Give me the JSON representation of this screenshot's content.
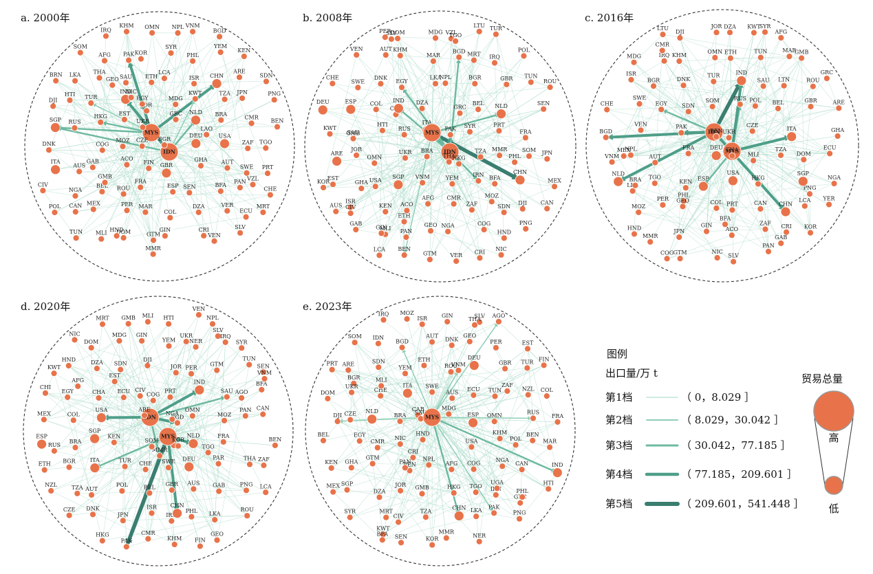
{
  "colors": {
    "node": "#E8734A",
    "node_stroke": "#ffffff",
    "tier1": "#B5DFCF",
    "tier2": "#8FCEB6",
    "tier3": "#6DB9A0",
    "tier4": "#4E9E88",
    "tier5": "#3A7E70",
    "border": "#333333"
  },
  "panels": [
    {
      "id": "a",
      "title": "a. 2000年",
      "big_nodes": [
        "MYS",
        "IDN"
      ],
      "medium_nodes": [
        "SGP",
        "NLD",
        "IND",
        "CHN",
        "ITA",
        "DEU",
        "USA",
        "GBR"
      ],
      "nodes": [
        "HKG",
        "MMR",
        "IRQ",
        "KHM",
        "OMN",
        "NPL",
        "VNM",
        "BGD",
        "LAO",
        "JOR",
        "VZL",
        "SOM",
        "AFG",
        "PAK",
        "KOR",
        "SYR",
        "PHL",
        "YEM",
        "KEN",
        "GEO",
        "BRN",
        "LKA",
        "THA",
        "SAU",
        "ETH",
        "LCA",
        "ISR",
        "CHN",
        "ARE",
        "SDN",
        "DJI",
        "HTI",
        "TUR",
        "IND",
        "EGY",
        "MDG",
        "KWT",
        "TZA",
        "JPN",
        "PNG",
        "SGP",
        "RUS",
        "MYS",
        "EST",
        "UKR",
        "GRC",
        "NLD",
        "BRA",
        "CMR",
        "BEN",
        "DNK",
        "IDN",
        "COG",
        "MOZ",
        "CZE",
        "BGR",
        "DEU",
        "USA",
        "ZAF",
        "TGO",
        "ITA",
        "AUS",
        "GAB",
        "ACO",
        "FIN",
        "GBR",
        "GHA",
        "AUT",
        "SWE",
        "PRT",
        "CIV",
        "NGA",
        "BEL",
        "ROU",
        "FRA",
        "ESP",
        "SEN",
        "BFA",
        "PAN",
        "CHE",
        "POL",
        "CAN",
        "MEX",
        "PER",
        "MAR",
        "COL",
        "DZA",
        "VER",
        "ECU",
        "MRT",
        "DOM",
        "TUN",
        "MLI",
        "HND",
        "GTM",
        "GIN",
        "CRI",
        "VEN",
        "SLV",
        "NIC",
        "GMB"
      ],
      "hubs": [
        {
          "from": "MYS",
          "to": "PAK",
          "tier": 4
        },
        {
          "from": "MYS",
          "to": "CHN",
          "tier": 4
        },
        {
          "from": "MYS",
          "to": "HKG",
          "tier": 3
        },
        {
          "from": "MYS",
          "to": "SGP",
          "tier": 3
        },
        {
          "from": "MYS",
          "to": "IND",
          "tier": 3
        },
        {
          "from": "IDN",
          "to": "IND",
          "tier": 4
        },
        {
          "from": "IDN",
          "to": "NLD",
          "tier": 3
        },
        {
          "from": "IDN",
          "to": "SGP",
          "tier": 3
        },
        {
          "from": "IDN",
          "to": "KWT",
          "tier": 2
        },
        {
          "from": "MYS",
          "to": "TUR",
          "tier": 2
        }
      ]
    },
    {
      "id": "b",
      "title": "b. 2008年",
      "big_nodes": [
        "MYS",
        "IDN"
      ],
      "medium_nodes": [
        "NLD",
        "ITA",
        "SGP",
        "ARE",
        "CHN",
        "IND",
        "ESP",
        "DEU"
      ],
      "nodes": [
        "ETH",
        "PHL",
        "PER",
        "DOM",
        "MDG",
        "VZL",
        "LTU",
        "TUR",
        "ISR",
        "GMB",
        "EST",
        "VEN",
        "AUT",
        "KHM",
        "MAR",
        "BGD",
        "MRT",
        "IRQ",
        "POL",
        "CZE",
        "CHE",
        "SWE",
        "DNK",
        "EGY",
        "LKA",
        "NPL",
        "BGR",
        "GBR",
        "TUN",
        "ROU",
        "DEU",
        "ESP",
        "COL",
        "IND",
        "DZA",
        "GRC",
        "BEL",
        "NLD",
        "IDN",
        "SEN",
        "KWT",
        "SAU",
        "HTI",
        "RUS",
        "ITA",
        "PAK",
        "SYR",
        "PRT",
        "FRA",
        "MYS",
        "ARE",
        "JOR",
        "OMN",
        "UKR",
        "BRA",
        "THA",
        "TZA",
        "MMR",
        "SOM",
        "JPN",
        "KOR",
        "GHA",
        "USA",
        "SGP",
        "VNM",
        "YEM",
        "IRN",
        "BFA",
        "CHN",
        "MEX",
        "AUS",
        "CIV",
        "KEN",
        "ACO",
        "AFG",
        "CMR",
        "ZAF",
        "SDN",
        "DJI",
        "CAN",
        "TGO",
        "GAB",
        "MLI",
        "PAN",
        "GEO",
        "NGA",
        "COG",
        "HND",
        "PNG",
        "HKG",
        "GIN",
        "MOZ",
        "LCA",
        "BEN",
        "GTM",
        "VER",
        "CRI",
        "NIC",
        "SLV"
      ],
      "hubs": [
        {
          "from": "MYS",
          "to": "CHN",
          "tier": 5
        },
        {
          "from": "MYS",
          "to": "IDN",
          "tier": 4
        },
        {
          "from": "IDN",
          "to": "PAK",
          "tier": 4
        },
        {
          "from": "IDN",
          "to": "EGY",
          "tier": 3
        },
        {
          "from": "IDN",
          "to": "IND",
          "tier": 3
        },
        {
          "from": "IDN",
          "to": "BGD",
          "tier": 3
        },
        {
          "from": "MYS",
          "to": "ITA",
          "tier": 3
        },
        {
          "from": "MYS",
          "to": "NLD",
          "tier": 3
        },
        {
          "from": "MYS",
          "to": "IRN",
          "tier": 3
        },
        {
          "from": "MYS",
          "to": "BEN",
          "tier": 2
        }
      ]
    },
    {
      "id": "c",
      "title": "c. 2016年",
      "big_nodes": [
        "IDN",
        "MYS"
      ],
      "medium_nodes": [
        "NLD",
        "ITA",
        "IND",
        "CHN",
        "ESP",
        "DEU",
        "USA",
        "SGP"
      ],
      "nodes": [
        "PNG",
        "SYR",
        "LTU",
        "DJI",
        "JOR",
        "DZA",
        "KWT",
        "AFG",
        "PHL",
        "BFA",
        "MMR",
        "MDG",
        "IRQ",
        "KHM",
        "OMN",
        "ETH",
        "TUN",
        "MAR",
        "GMB",
        "LKA",
        "IRQ",
        "ISR",
        "BGR",
        "DNK",
        "TUR",
        "IND",
        "SAU",
        "LTN",
        "ROU",
        "GRC",
        "CHE",
        "SWE",
        "EGY",
        "SDN",
        "SOM",
        "RUS",
        "POL",
        "BEL",
        "GBR",
        "ARE",
        "BGD",
        "VEN",
        "IDN",
        "PAK",
        "BEN",
        "UKR",
        "CZE",
        "ITA",
        "MYS",
        "GHA",
        "VNM",
        "NPL",
        "AUT",
        "FRA",
        "DEU",
        "THA",
        "MLI",
        "TZA",
        "DOM",
        "ECU",
        "NLD",
        "BRA",
        "TGO",
        "KEN",
        "ESP",
        "USA",
        "HKG",
        "PHL",
        "SGP",
        "NGA",
        "LKA",
        "MOZ",
        "PER",
        "GEO",
        "COL",
        "PRT",
        "CAN",
        "CHN",
        "LCA",
        "YER",
        "MEX",
        "HND",
        "ISR",
        "JPN",
        "GIN",
        "ACO",
        "ZAF",
        "CRI",
        "KOR",
        "GAB",
        "PAN",
        "CMR",
        "COG",
        "GTM",
        "NIC",
        "SLV"
      ],
      "hubs": [
        {
          "from": "IDN",
          "to": "IND",
          "tier": 5
        },
        {
          "from": "IDN",
          "to": "PAK",
          "tier": 4
        },
        {
          "from": "IDN",
          "to": "BGD",
          "tier": 4
        },
        {
          "from": "IDN",
          "to": "NLD",
          "tier": 4
        },
        {
          "from": "MYS",
          "to": "ITA",
          "tier": 4
        },
        {
          "from": "IDN",
          "to": "CHN",
          "tier": 4
        },
        {
          "from": "MYS",
          "to": "RUS",
          "tier": 3
        },
        {
          "from": "MYS",
          "to": "IND",
          "tier": 4
        },
        {
          "from": "MYS",
          "to": "ESP",
          "tier": 3
        },
        {
          "from": "IDN",
          "to": "EGY",
          "tier": 3
        }
      ]
    },
    {
      "id": "d",
      "title": "d. 2020年",
      "big_nodes": [
        "IDN",
        "MYS"
      ],
      "medium_nodes": [
        "NLD",
        "ITA",
        "ESP",
        "CHN",
        "IND",
        "SGP",
        "DEU",
        "USA"
      ],
      "nodes": [
        "SLV",
        "AFG",
        "MRT",
        "GMB",
        "MLI",
        "HTI",
        "VEN",
        "NPL",
        "MMR",
        "IRN",
        "BGD",
        "NIC",
        "DOM",
        "MDG",
        "GIN",
        "YEM",
        "NER",
        "IRQ",
        "SYR",
        "TGO",
        "KWT",
        "HND",
        "DZA",
        "SDN",
        "DJI",
        "JOR",
        "PER",
        "GTM",
        "TUN",
        "SEN",
        "CHI",
        "EGY",
        "CHA",
        "ECU",
        "CIV",
        "PRT",
        "IND",
        "SAU",
        "AGO",
        "BFA",
        "MEX",
        "COL",
        "USA",
        "IDN",
        "ARE",
        "NGA",
        "OMN",
        "MOZ",
        "PAN",
        "CAN",
        "ESP",
        "BRA",
        "SGP",
        "KEN",
        "SOM",
        "GRC",
        "NLD",
        "FRA",
        "MYS",
        "BEN",
        "ETH",
        "BGR",
        "ITA",
        "TUR",
        "CHE",
        "SWE",
        "DEU",
        "PAR",
        "THA",
        "ZAF",
        "NZL",
        "TZA",
        "AUT",
        "POL",
        "BEL",
        "GBR",
        "AUS",
        "GAB",
        "PNG",
        "LCA",
        "COG",
        "CZE",
        "DNK",
        "JPN",
        "ISR",
        "CHN",
        "PHL",
        "LKA",
        "ROU",
        "RUS",
        "UKR",
        "KOR",
        "HKG",
        "PAK",
        "CMR",
        "KHM",
        "FIN",
        "GEO",
        "VNM",
        "EST"
      ],
      "hubs": [
        {
          "from": "MYS",
          "to": "PAK",
          "tier": 5
        },
        {
          "from": "MYS",
          "to": "CHN",
          "tier": 4
        },
        {
          "from": "IDN",
          "to": "BGD",
          "tier": 4
        },
        {
          "from": "IDN",
          "to": "MMR",
          "tier": 3
        },
        {
          "from": "IDN",
          "to": "IND",
          "tier": 4
        },
        {
          "from": "MYS",
          "to": "NLD",
          "tier": 4
        },
        {
          "from": "MYS",
          "to": "ITA",
          "tier": 3
        },
        {
          "from": "IDN",
          "to": "USA",
          "tier": 4
        },
        {
          "from": "IDN",
          "to": "SAU",
          "tier": 3
        },
        {
          "from": "MYS",
          "to": "KOR",
          "tier": 3
        }
      ]
    },
    {
      "id": "e",
      "title": "e. 2023年",
      "big_nodes": [
        "MYS"
      ],
      "medium_nodes": [
        "NLD",
        "ESP",
        "CHN",
        "IND",
        "DEU",
        "ITA"
      ],
      "nodes": [
        "CAB",
        "VEN",
        "IRQ",
        "MOZ",
        "ISR",
        "GIN",
        "SLV",
        "AGO",
        "TUN",
        "BGR",
        "GRC",
        "SOM",
        "IDN",
        "BGD",
        "AUT",
        "DNK",
        "GEO",
        "PER",
        "EST",
        "POL",
        "PRT",
        "ARE",
        "SDN",
        "YEM",
        "ETH",
        "ROU",
        "DEU",
        "GBR",
        "TUR",
        "FIN",
        "DOM",
        "UKR",
        "CHE",
        "ITA",
        "SWE",
        "AUS",
        "ECU",
        "ZAF",
        "NZL",
        "COL",
        "DJI",
        "CZE",
        "NLD",
        "BRA",
        "SAU",
        "MDG",
        "ESP",
        "OMN",
        "RUS",
        "FRA",
        "BEL",
        "EGY",
        "CMR",
        "NIC",
        "HND",
        "MYS",
        "USA",
        "KHM",
        "BEN",
        "MAR",
        "KEN",
        "GHA",
        "GTM",
        "PAN",
        "NPL",
        "AFG",
        "COG",
        "NGA",
        "CAN",
        "IND",
        "MEX",
        "SGP",
        "DZA",
        "JOR",
        "GMB",
        "HKG",
        "TGO",
        "IRN",
        "PHL",
        "HTI",
        "KWT",
        "SYR",
        "MRT",
        "CIV",
        "TZA",
        "CHN",
        "LKA",
        "PAK",
        "PNG",
        "MLI",
        "THA",
        "CRI",
        "BFA",
        "SEN",
        "KOR",
        "MMR",
        "NER",
        "LKA",
        "VNM",
        "UGA"
      ],
      "hubs": [
        {
          "from": "MYS",
          "to": "CHN",
          "tier": 3
        },
        {
          "from": "MYS",
          "to": "IND",
          "tier": 3
        },
        {
          "from": "MYS",
          "to": "PAK",
          "tier": 2
        },
        {
          "from": "MYS",
          "to": "BGD",
          "tier": 2
        },
        {
          "from": "MYS",
          "to": "AGO",
          "tier": 2
        },
        {
          "from": "MYS",
          "to": "RUS",
          "tier": 2
        },
        {
          "from": "MYS",
          "to": "DJI",
          "tier": 2
        },
        {
          "from": "MYS",
          "to": "VNM",
          "tier": 2
        }
      ]
    }
  ],
  "legend": {
    "title": "图例",
    "subtitle": "出口量/万 t",
    "size_title": "贸易总量",
    "high": "高",
    "low": "低",
    "tiers": [
      {
        "label": "第1档",
        "range": "（ 0，8.029 ］"
      },
      {
        "label": "第2档",
        "range": "（ 8.029，30.042 ］"
      },
      {
        "label": "第3档",
        "range": "（ 30.042，77.185 ］"
      },
      {
        "label": "第4档",
        "range": "（ 77.185，209.601 ］"
      },
      {
        "label": "第5档",
        "range": "（ 209.601，541.448 ］"
      }
    ]
  }
}
